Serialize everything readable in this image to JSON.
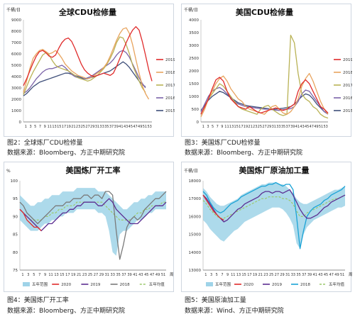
{
  "chart_data": [
    {
      "type": "line",
      "title": "全球CDU检修量",
      "unit": "千桶/日",
      "ylim": [
        0,
        9000
      ],
      "yticks": [
        0,
        1000,
        2000,
        3000,
        4000,
        5000,
        6000,
        7000,
        8000,
        9000
      ],
      "xticks": [
        "1",
        "3",
        "5",
        "7",
        "9",
        "11",
        "13",
        "15",
        "17",
        "19",
        "21",
        "23",
        "25",
        "27",
        "29",
        "31",
        "33",
        "35",
        "37",
        "39",
        "41",
        "43",
        "45",
        "47",
        "49",
        "51",
        "53"
      ],
      "colors": {
        "2019": "#e02b2b",
        "2018": "#e8a45e",
        "2017": "#b9b255",
        "2016": "#7b63a8",
        "2015": "#3f4f7a"
      },
      "series": [
        {
          "name": "2019",
          "values": [
            3200,
            3800,
            4500,
            5200,
            5800,
            6200,
            6300,
            6100,
            5800,
            5700,
            5900,
            6500,
            7000,
            7300,
            7400,
            7100,
            6500,
            5800,
            5100,
            4600,
            4300,
            4100,
            4000,
            4100,
            4200,
            4300,
            4200,
            4100,
            4300,
            4900,
            5600,
            6300,
            7000,
            7600,
            8100,
            8400,
            8100,
            7100,
            5900,
            4600,
            3600
          ]
        },
        {
          "name": "2018",
          "values": [
            2600,
            3600,
            4700,
            5600,
            6000,
            6300,
            6400,
            6200,
            6000,
            6100,
            6300,
            6000,
            5600,
            5100,
            4800,
            4500,
            4300,
            4100,
            4000,
            3900,
            3800,
            3900,
            4100,
            4300,
            4500,
            4800,
            5200,
            5800,
            6500,
            7200,
            7800,
            8200,
            8300,
            7800,
            6800,
            5500,
            4300,
            3200,
            2500,
            2000
          ]
        },
        {
          "name": "2017",
          "values": [
            2400,
            3100,
            3800,
            4400,
            4900,
            5400,
            5900,
            6100,
            5900,
            5400,
            5000,
            4800,
            4700,
            4600,
            4500,
            4300,
            4100,
            3900,
            3800,
            3700,
            3600,
            3700,
            3900,
            4100,
            4400,
            4700,
            5100,
            5600,
            6200,
            7000,
            7500,
            7400,
            6800,
            6000,
            5000,
            4300,
            3600,
            3000,
            2600
          ]
        },
        {
          "name": "2016",
          "values": [
            2500,
            2700,
            3000,
            3400,
            3800,
            4100,
            4400,
            4600,
            4700,
            4700,
            4800,
            4900,
            5000,
            4800,
            4500,
            4200,
            4000,
            3900,
            3800,
            3800,
            3900,
            4000,
            4200,
            4400,
            4600,
            4800,
            5000,
            5200,
            5500,
            5900,
            6200,
            6300,
            6100,
            5700,
            5100,
            4500,
            3900,
            3400,
            3000
          ]
        },
        {
          "name": "2015",
          "values": [
            2300,
            2500,
            2800,
            3100,
            3300,
            3500,
            3600,
            3700,
            3800,
            3900,
            4000,
            4100,
            4200,
            4300,
            4300,
            4200,
            4100,
            4000,
            3900,
            3800,
            3800,
            3900,
            4000,
            4100,
            4200,
            4300,
            4400,
            4500,
            4700,
            4900,
            5100,
            5300,
            5100,
            4800,
            4400,
            4000,
            3600,
            3300,
            3100
          ]
        }
      ]
    },
    {
      "type": "line",
      "title": "美国CDU检修量",
      "unit": "千桶/日",
      "ylim": [
        0,
        4000
      ],
      "yticks": [
        0,
        500,
        1000,
        1500,
        2000,
        2500,
        3000,
        3500,
        4000
      ],
      "xticks": [
        "1",
        "3",
        "5",
        "7",
        "9",
        "11",
        "13",
        "15",
        "17",
        "19",
        "21",
        "23",
        "25",
        "27",
        "29",
        "31",
        "33",
        "35",
        "37",
        "39",
        "41",
        "43",
        "45",
        "47",
        "49",
        "51",
        "53"
      ],
      "colors": {
        "2019": "#e02b2b",
        "2018": "#e8a45e",
        "2017": "#b9b255",
        "2016": "#7b63a8",
        "2015": "#3f4f7a"
      },
      "series": [
        {
          "name": "2019",
          "values": [
            300,
            600,
            900,
            1300,
            1650,
            1750,
            1600,
            1200,
            900,
            750,
            600,
            550,
            500,
            600,
            500,
            400,
            350,
            400,
            450,
            500,
            550,
            500,
            450,
            500,
            600,
            700,
            1200,
            1500,
            1650,
            1500,
            1200,
            900,
            600,
            500,
            350
          ]
        },
        {
          "name": "2018",
          "values": [
            200,
            500,
            900,
            1200,
            1500,
            1700,
            1800,
            1600,
            1300,
            1100,
            900,
            800,
            600,
            500,
            450,
            400,
            350,
            300,
            450,
            600,
            650,
            500,
            350,
            300,
            400,
            600,
            900,
            1400,
            1700,
            1900,
            1600,
            1200,
            800,
            500,
            300
          ]
        },
        {
          "name": "2017",
          "values": [
            300,
            600,
            900,
            1100,
            1300,
            1500,
            1400,
            1200,
            1000,
            800,
            600,
            500,
            450,
            400,
            350,
            300,
            500,
            600,
            650,
            500,
            400,
            300,
            250,
            300,
            3400,
            3100,
            1900,
            1100,
            900,
            800,
            600,
            500,
            300,
            200,
            150
          ]
        },
        {
          "name": "2016",
          "values": [
            400,
            700,
            1000,
            1200,
            1300,
            1350,
            1250,
            1100,
            950,
            800,
            700,
            650,
            600,
            580,
            560,
            540,
            520,
            500,
            500,
            480,
            460,
            450,
            480,
            500,
            520,
            600,
            800,
            1100,
            1250,
            1200,
            1000,
            800,
            600,
            400,
            300
          ]
        },
        {
          "name": "2015",
          "values": [
            450,
            650,
            850,
            1000,
            1100,
            1200,
            1150,
            1050,
            950,
            850,
            750,
            700,
            650,
            620,
            600,
            580,
            560,
            540,
            520,
            500,
            500,
            520,
            540,
            560,
            600,
            700,
            850,
            1000,
            1100,
            1050,
            900,
            700,
            550,
            400,
            350
          ]
        }
      ]
    },
    {
      "type": "line",
      "title": "美国炼厂开工率",
      "unit": "%",
      "ylim": [
        75,
        100
      ],
      "yticks": [
        75,
        80,
        85,
        90,
        95,
        100
      ],
      "xticks": [
        "1",
        "3",
        "5",
        "7",
        "9",
        "11",
        "13",
        "15",
        "17",
        "19",
        "21",
        "23",
        "25",
        "27",
        "29",
        "31",
        "33",
        "35",
        "37",
        "39",
        "41",
        "43",
        "45",
        "47",
        "49",
        "51"
      ],
      "xlabel": "周",
      "colors": {
        "range": "#9fd3e8",
        "2020": "#e02b2b",
        "2019": "#5b2d91",
        "2018": "#7a7a7a",
        "avg": "#9cc96b"
      },
      "series": [
        {
          "name": "五年范围",
          "low": [
            89,
            88,
            87,
            86,
            86,
            86,
            87,
            88,
            88,
            89,
            89,
            90,
            90,
            91,
            91,
            91,
            92,
            92,
            92,
            92,
            92,
            92,
            91,
            91,
            90,
            86,
            80,
            79,
            85,
            86,
            86,
            87,
            88,
            89,
            89,
            90,
            91,
            91,
            92,
            92,
            92,
            92
          ],
          "high": [
            96,
            95,
            94,
            93,
            93,
            94,
            94,
            95,
            95,
            96,
            96,
            96,
            97,
            97,
            97,
            97,
            98,
            98,
            98,
            98,
            98,
            98,
            97,
            97,
            97,
            96,
            95,
            94,
            93,
            92,
            92,
            93,
            94,
            94,
            95,
            95,
            96,
            96,
            97,
            97,
            97,
            97
          ]
        },
        {
          "name": "2020",
          "values": [
            92,
            91,
            89,
            88,
            87,
            87,
            86
          ]
        },
        {
          "name": "2019",
          "values": [
            92,
            91,
            90,
            89,
            88,
            87,
            86,
            87,
            88,
            88,
            89,
            90,
            91,
            91,
            92,
            92,
            93,
            93,
            94,
            94,
            94,
            94,
            93,
            93,
            94,
            95,
            94,
            92,
            91,
            90,
            89,
            88,
            88,
            88,
            89,
            90,
            91,
            92,
            93,
            93,
            93,
            94
          ]
        },
        {
          "name": "2018",
          "values": [
            94,
            93,
            91,
            90,
            89,
            88,
            89,
            90,
            91,
            92,
            93,
            93,
            93,
            94,
            94,
            95,
            95,
            95,
            96,
            96,
            95,
            96,
            96,
            95,
            97,
            97,
            96,
            86,
            78,
            82,
            87,
            89,
            90,
            89,
            90,
            92,
            93,
            94,
            95,
            95,
            96,
            97
          ]
        },
        {
          "name": "五年均值",
          "values": [
            92,
            91,
            90,
            89,
            89,
            89,
            89,
            90,
            90,
            91,
            91,
            92,
            92,
            93,
            93,
            93,
            94,
            94,
            94,
            94,
            94,
            94,
            94,
            94,
            93,
            92,
            91,
            90,
            89,
            89,
            89,
            89,
            90,
            91,
            91,
            92,
            92,
            93,
            93,
            93,
            94,
            94
          ]
        }
      ]
    },
    {
      "type": "line",
      "title": "美国炼厂原油加工量",
      "unit": "千桶/日",
      "ylim": [
        13000,
        18000
      ],
      "yticks": [
        13000,
        14000,
        15000,
        16000,
        17000,
        18000
      ],
      "xticks": [
        "1",
        "3",
        "5",
        "7",
        "9",
        "11",
        "13",
        "15",
        "17",
        "19",
        "21",
        "23",
        "25",
        "27",
        "29",
        "31",
        "33",
        "35",
        "37",
        "39",
        "41",
        "43",
        "45",
        "47",
        "49",
        "51"
      ],
      "xlabel": "周",
      "colors": {
        "range": "#9fd3e8",
        "2020": "#e02b2b",
        "2019": "#5b2d91",
        "2018": "#1aa3d6",
        "avg": "#9cc96b"
      },
      "series": [
        {
          "name": "五年范围",
          "low": [
            15800,
            15600,
            15300,
            15100,
            14900,
            14700,
            14600,
            14800,
            15000,
            15200,
            15300,
            15500,
            15700,
            15800,
            15900,
            16000,
            16100,
            16200,
            16300,
            16400,
            16500,
            16500,
            16500,
            16400,
            16200,
            15900,
            15500,
            14500,
            14200,
            15000,
            15400,
            15600,
            15800,
            15900,
            16000,
            16100,
            16200,
            16300,
            16400,
            16500,
            16500,
            16600
          ],
          "high": [
            17600,
            17400,
            17100,
            16900,
            16700,
            16600,
            16600,
            16700,
            16800,
            16900,
            17000,
            17200,
            17300,
            17400,
            17500,
            17600,
            17700,
            17800,
            17800,
            17900,
            17900,
            17900,
            17800,
            17800,
            17700,
            17500,
            17300,
            17000,
            16800,
            16700,
            16700,
            16800,
            16900,
            17000,
            17100,
            17200,
            17300,
            17400,
            17500,
            17500,
            17600,
            17700
          ]
        },
        {
          "name": "2020",
          "values": [
            17200,
            16900,
            16600,
            16300,
            16100,
            15900,
            15800
          ]
        },
        {
          "name": "2019",
          "values": [
            17200,
            17000,
            16700,
            16400,
            16100,
            15900,
            15700,
            15800,
            16000,
            16200,
            16400,
            16500,
            16700,
            16800,
            16900,
            17000,
            17100,
            17300,
            17400,
            17400,
            17300,
            17400,
            17400,
            17300,
            17400,
            17500,
            17200,
            16800,
            16400,
            16100,
            15900,
            15900,
            16000,
            16100,
            16300,
            16500,
            16600,
            16800,
            16900,
            17000,
            17100,
            17200
          ]
        },
        {
          "name": "2018",
          "values": [
            17400,
            17200,
            16800,
            16500,
            16300,
            16200,
            16300,
            16500,
            16700,
            16800,
            16900,
            17100,
            17200,
            17300,
            17400,
            17500,
            17600,
            17700,
            17700,
            17800,
            17800,
            17900,
            17800,
            17700,
            17800,
            17800,
            17500,
            16000,
            14200,
            15200,
            16000,
            16300,
            16500,
            16600,
            16700,
            16900,
            17000,
            17200,
            17300,
            17400,
            17500,
            17700
          ]
        },
        {
          "name": "五年均值",
          "values": [
            16900,
            16700,
            16400,
            16200,
            16000,
            15900,
            15900,
            16000,
            16100,
            16200,
            16300,
            16400,
            16500,
            16600,
            16700,
            16800,
            16900,
            17000,
            17000,
            17100,
            17100,
            17100,
            17100,
            17000,
            17000,
            16900,
            16700,
            16300,
            16000,
            16000,
            16200,
            16300,
            16400,
            16500,
            16600,
            16700,
            16800,
            16900,
            17000,
            17000,
            17100,
            17200
          ]
        }
      ]
    }
  ],
  "captions": {
    "fig2": "图2：全球炼厂CDU检修量",
    "fig3": "图3：美国炼厂CDU检修量",
    "fig4": "图4：美国炼厂开工率",
    "fig5": "图5：美国原油加工量",
    "src_bbg_left": "数据来源：Bloomberg、方正中期研究院",
    "src_bbg_right": "数据来源：Bloomberg、方正中期研究院",
    "src_bbg_bottom": "数据来源：Bloomberg、方正中期研究院",
    "src_wind": "数据来源：Wind、方正中期研究院"
  }
}
